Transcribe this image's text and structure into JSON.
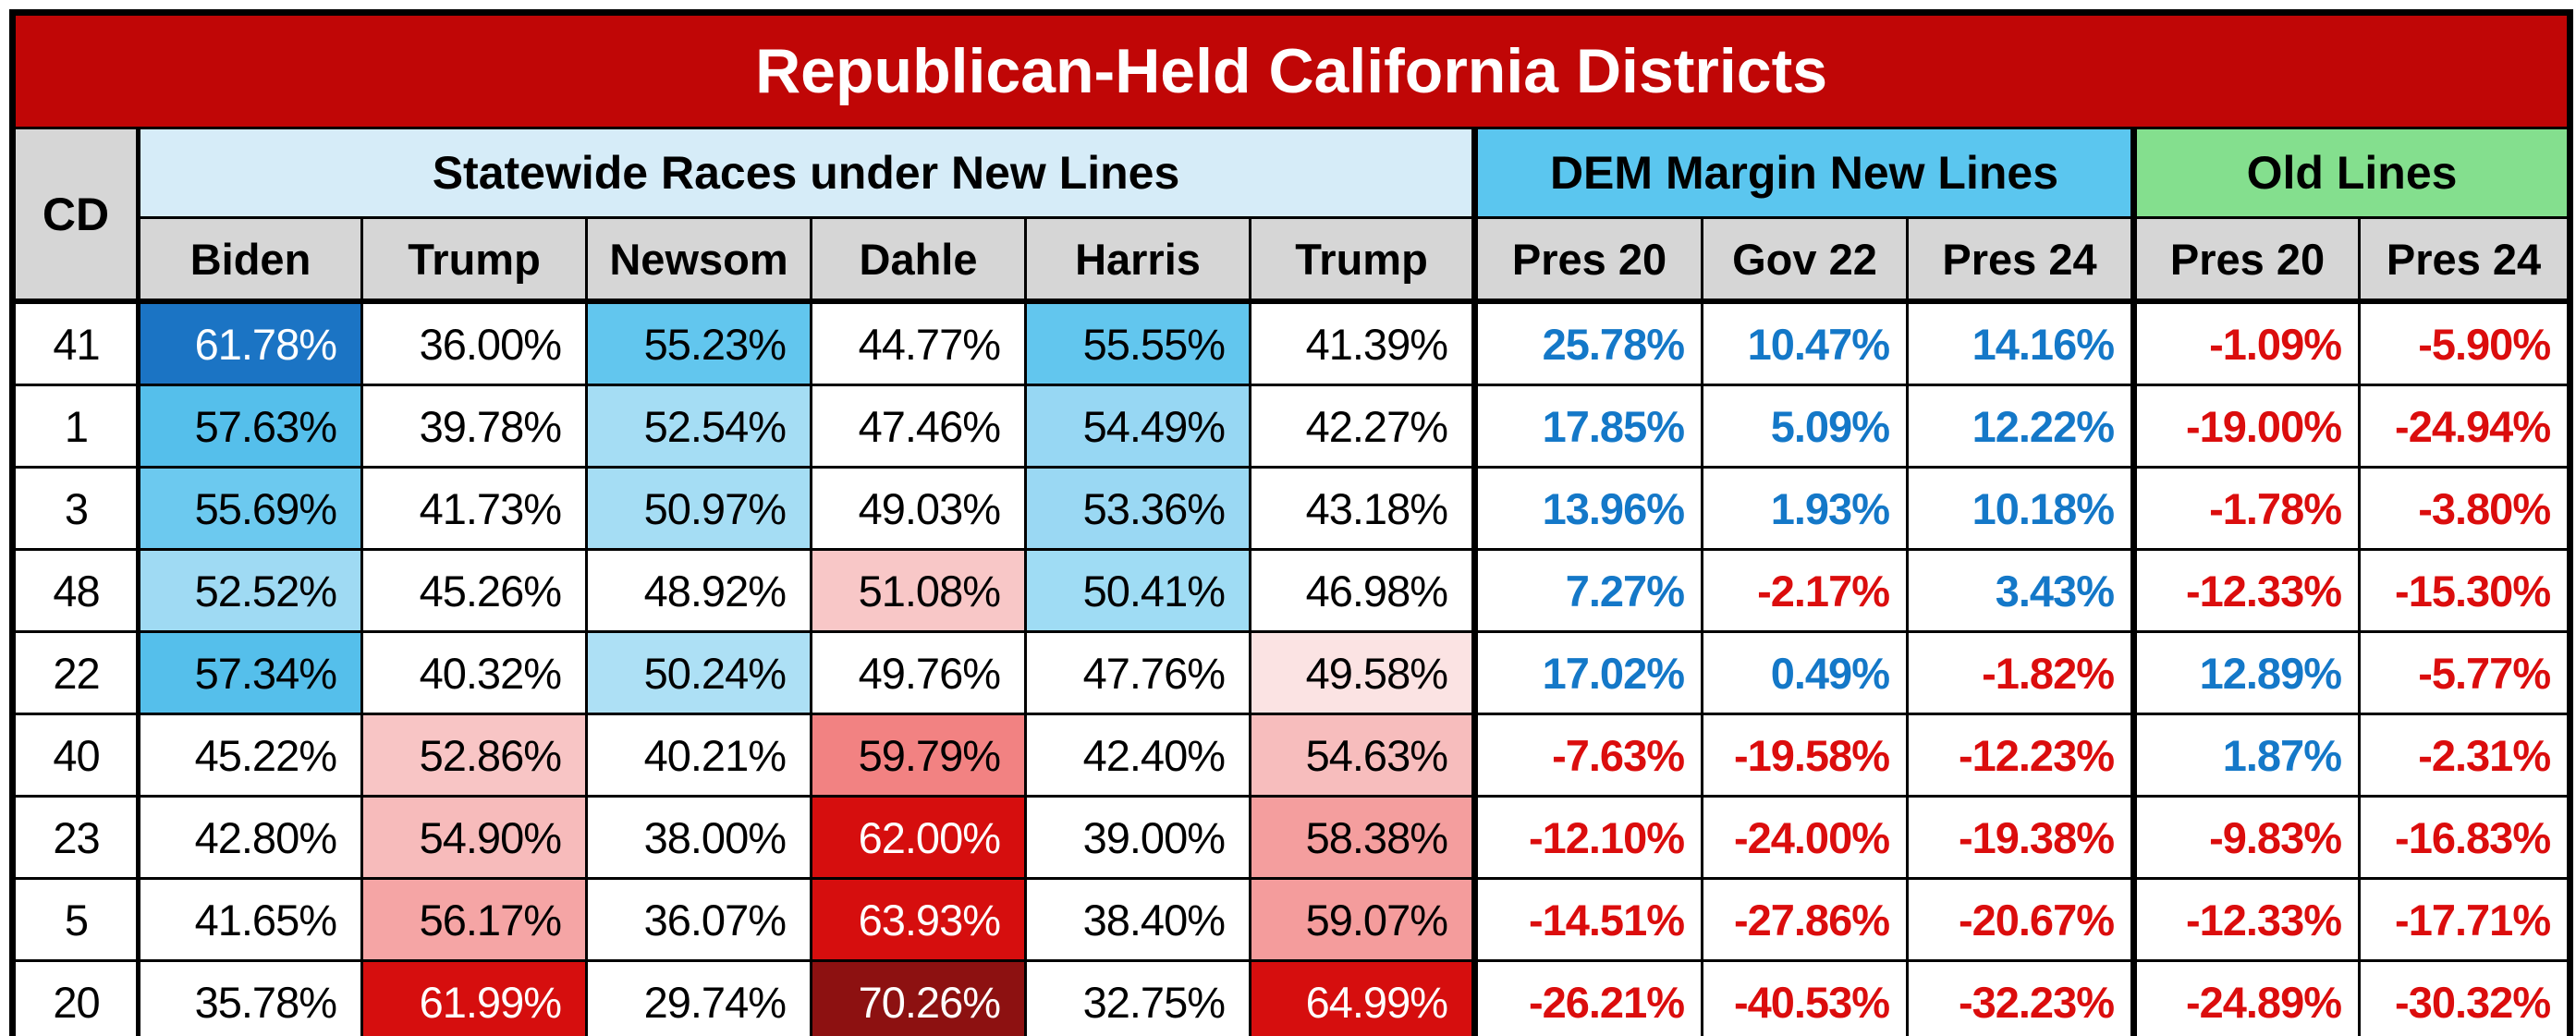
{
  "title": "Republican-Held California Districts",
  "colors": {
    "title_bg": "#C00606",
    "title_fg": "#FFFFFF",
    "statewide_header_bg": "#D6ECF8",
    "dem_margin_header_bg": "#5BC6EF",
    "old_lines_header_bg": "#84DF8E",
    "subheader_bg": "#D6D6D6",
    "pos_text": "#1478C8",
    "neg_text": "#DB0D0D",
    "dem_cell_strong": "#1B74C4",
    "rep_cell_strong": "#D60E0E",
    "rep_cell_darkest": "#8D1111"
  },
  "chart_data": {
    "type": "table",
    "title": "Republican-Held California Districts",
    "cd_header": "CD",
    "column_groups": [
      {
        "label": "Statewide Races under New Lines",
        "colspan": 6
      },
      {
        "label": "DEM Margin New Lines",
        "colspan": 3
      },
      {
        "label": "Old Lines",
        "colspan": 2
      }
    ],
    "columns": [
      "Biden",
      "Trump",
      "Newsom",
      "Dahle",
      "Harris",
      "Trump",
      "Pres 20",
      "Gov 22",
      "Pres 24",
      "Pres 20",
      "Pres 24"
    ],
    "rows": [
      {
        "cd": "41",
        "statewide": [
          {
            "v": "61.78%",
            "bg": "#1B74C4",
            "fg": "#FFFFFF"
          },
          {
            "v": "36.00%"
          },
          {
            "v": "55.23%",
            "bg": "#62C6EE"
          },
          {
            "v": "44.77%"
          },
          {
            "v": "55.55%",
            "bg": "#62C6EE"
          },
          {
            "v": "41.39%"
          }
        ],
        "margins": [
          "25.78%",
          "10.47%",
          "14.16%"
        ],
        "old": [
          "-1.09%",
          "-5.90%"
        ]
      },
      {
        "cd": "1",
        "statewide": [
          {
            "v": "57.63%",
            "bg": "#55BFEB"
          },
          {
            "v": "39.78%"
          },
          {
            "v": "52.54%",
            "bg": "#A5DDF4"
          },
          {
            "v": "47.46%"
          },
          {
            "v": "54.49%",
            "bg": "#97D7F3"
          },
          {
            "v": "42.27%"
          }
        ],
        "margins": [
          "17.85%",
          "5.09%",
          "12.22%"
        ],
        "old": [
          "-19.00%",
          "-24.94%"
        ]
      },
      {
        "cd": "3",
        "statewide": [
          {
            "v": "55.69%",
            "bg": "#6CC9EF"
          },
          {
            "v": "41.73%"
          },
          {
            "v": "50.97%",
            "bg": "#A5DDF4"
          },
          {
            "v": "49.03%"
          },
          {
            "v": "53.36%",
            "bg": "#9AD8F3"
          },
          {
            "v": "43.18%"
          }
        ],
        "margins": [
          "13.96%",
          "1.93%",
          "10.18%"
        ],
        "old": [
          "-1.78%",
          "-3.80%"
        ]
      },
      {
        "cd": "48",
        "statewide": [
          {
            "v": "52.52%",
            "bg": "#9FDAF3"
          },
          {
            "v": "45.26%"
          },
          {
            "v": "48.92%"
          },
          {
            "v": "51.08%",
            "bg": "#F8C7C7"
          },
          {
            "v": "50.41%",
            "bg": "#9FDCF4"
          },
          {
            "v": "46.98%"
          }
        ],
        "margins": [
          "7.27%",
          "-2.17%",
          "3.43%"
        ],
        "old": [
          "-12.33%",
          "-15.30%"
        ]
      },
      {
        "cd": "22",
        "statewide": [
          {
            "v": "57.34%",
            "bg": "#55BFEB"
          },
          {
            "v": "40.32%"
          },
          {
            "v": "50.24%",
            "bg": "#ADE0F5"
          },
          {
            "v": "49.76%"
          },
          {
            "v": "47.76%"
          },
          {
            "v": "49.58%",
            "bg": "#FBE3E3"
          }
        ],
        "margins": [
          "17.02%",
          "0.49%",
          "-1.82%"
        ],
        "old": [
          "12.89%",
          "-5.77%"
        ]
      },
      {
        "cd": "40",
        "statewide": [
          {
            "v": "45.22%"
          },
          {
            "v": "52.86%",
            "bg": "#F8C5C5"
          },
          {
            "v": "40.21%"
          },
          {
            "v": "59.79%",
            "bg": "#F28282"
          },
          {
            "v": "42.40%"
          },
          {
            "v": "54.63%",
            "bg": "#F7BDBD"
          }
        ],
        "margins": [
          "-7.63%",
          "-19.58%",
          "-12.23%"
        ],
        "old": [
          "1.87%",
          "-2.31%"
        ]
      },
      {
        "cd": "23",
        "statewide": [
          {
            "v": "42.80%"
          },
          {
            "v": "54.90%",
            "bg": "#F7BBBB"
          },
          {
            "v": "38.00%"
          },
          {
            "v": "62.00%",
            "bg": "#D60E0E",
            "fg": "#FFFFFF"
          },
          {
            "v": "39.00%"
          },
          {
            "v": "58.38%",
            "bg": "#F49E9E"
          }
        ],
        "margins": [
          "-12.10%",
          "-24.00%",
          "-19.38%"
        ],
        "old": [
          "-9.83%",
          "-16.83%"
        ]
      },
      {
        "cd": "5",
        "statewide": [
          {
            "v": "41.65%"
          },
          {
            "v": "56.17%",
            "bg": "#F5A5A5"
          },
          {
            "v": "36.07%"
          },
          {
            "v": "63.93%",
            "bg": "#D60E0E",
            "fg": "#FFFFFF"
          },
          {
            "v": "38.40%"
          },
          {
            "v": "59.07%",
            "bg": "#F49C9C"
          }
        ],
        "margins": [
          "-14.51%",
          "-27.86%",
          "-20.67%"
        ],
        "old": [
          "-12.33%",
          "-17.71%"
        ]
      },
      {
        "cd": "20",
        "statewide": [
          {
            "v": "35.78%"
          },
          {
            "v": "61.99%",
            "bg": "#D60E0E",
            "fg": "#FFFFFF"
          },
          {
            "v": "29.74%"
          },
          {
            "v": "70.26%",
            "bg": "#8D1111",
            "fg": "#FFFFFF"
          },
          {
            "v": "32.75%"
          },
          {
            "v": "64.99%",
            "bg": "#D60E0E",
            "fg": "#FFFFFF"
          }
        ],
        "margins": [
          "-26.21%",
          "-40.53%",
          "-32.23%"
        ],
        "old": [
          "-24.89%",
          "-30.32%"
        ]
      }
    ]
  }
}
